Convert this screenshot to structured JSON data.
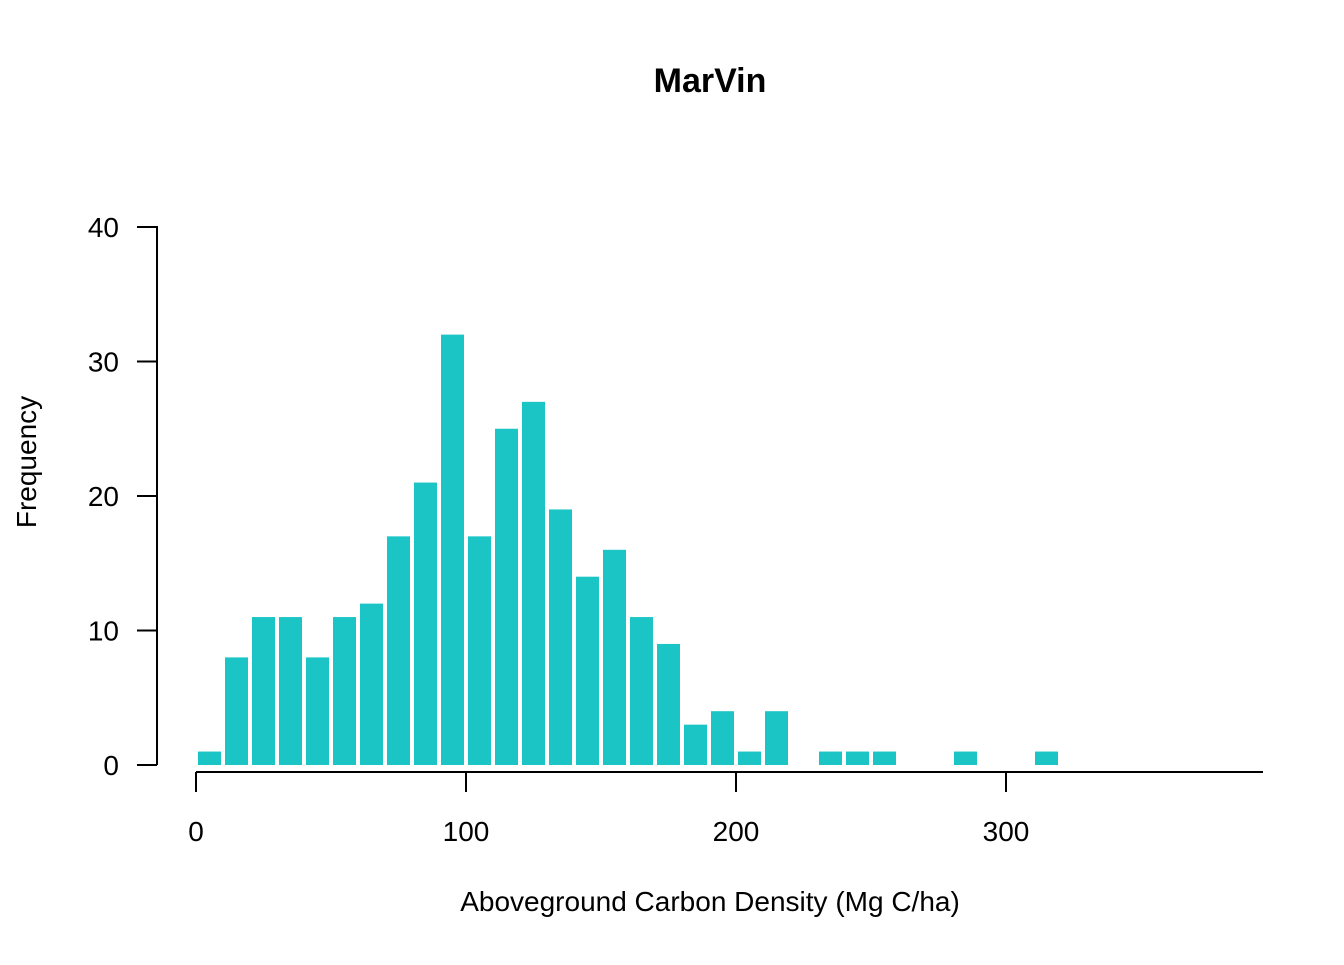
{
  "chart_data": {
    "type": "bar",
    "title": "MarVin",
    "xlabel": "Aboveground Carbon Density (Mg C/ha)",
    "ylabel": "Frequency",
    "xlim": [
      0,
      395
    ],
    "ylim": [
      0,
      40
    ],
    "x_ticks": [
      0,
      100,
      200,
      300
    ],
    "y_ticks": [
      0,
      10,
      20,
      30,
      40
    ],
    "bin_width": 10,
    "bar_color": "#1CC5C5",
    "grid": false,
    "legend": "none",
    "bins": [
      {
        "start": 0,
        "end": 10,
        "count": 1
      },
      {
        "start": 10,
        "end": 20,
        "count": 8
      },
      {
        "start": 20,
        "end": 30,
        "count": 11
      },
      {
        "start": 30,
        "end": 40,
        "count": 11
      },
      {
        "start": 40,
        "end": 50,
        "count": 8
      },
      {
        "start": 50,
        "end": 60,
        "count": 11
      },
      {
        "start": 60,
        "end": 70,
        "count": 12
      },
      {
        "start": 70,
        "end": 80,
        "count": 17
      },
      {
        "start": 80,
        "end": 90,
        "count": 21
      },
      {
        "start": 90,
        "end": 100,
        "count": 32
      },
      {
        "start": 100,
        "end": 110,
        "count": 17
      },
      {
        "start": 110,
        "end": 120,
        "count": 25
      },
      {
        "start": 120,
        "end": 130,
        "count": 27
      },
      {
        "start": 130,
        "end": 140,
        "count": 19
      },
      {
        "start": 140,
        "end": 150,
        "count": 14
      },
      {
        "start": 150,
        "end": 160,
        "count": 16
      },
      {
        "start": 160,
        "end": 170,
        "count": 11
      },
      {
        "start": 170,
        "end": 180,
        "count": 9
      },
      {
        "start": 180,
        "end": 190,
        "count": 3
      },
      {
        "start": 190,
        "end": 200,
        "count": 4
      },
      {
        "start": 200,
        "end": 210,
        "count": 1
      },
      {
        "start": 210,
        "end": 220,
        "count": 4
      },
      {
        "start": 230,
        "end": 240,
        "count": 1
      },
      {
        "start": 240,
        "end": 250,
        "count": 1
      },
      {
        "start": 250,
        "end": 260,
        "count": 1
      },
      {
        "start": 280,
        "end": 290,
        "count": 1
      },
      {
        "start": 310,
        "end": 320,
        "count": 1
      }
    ]
  }
}
